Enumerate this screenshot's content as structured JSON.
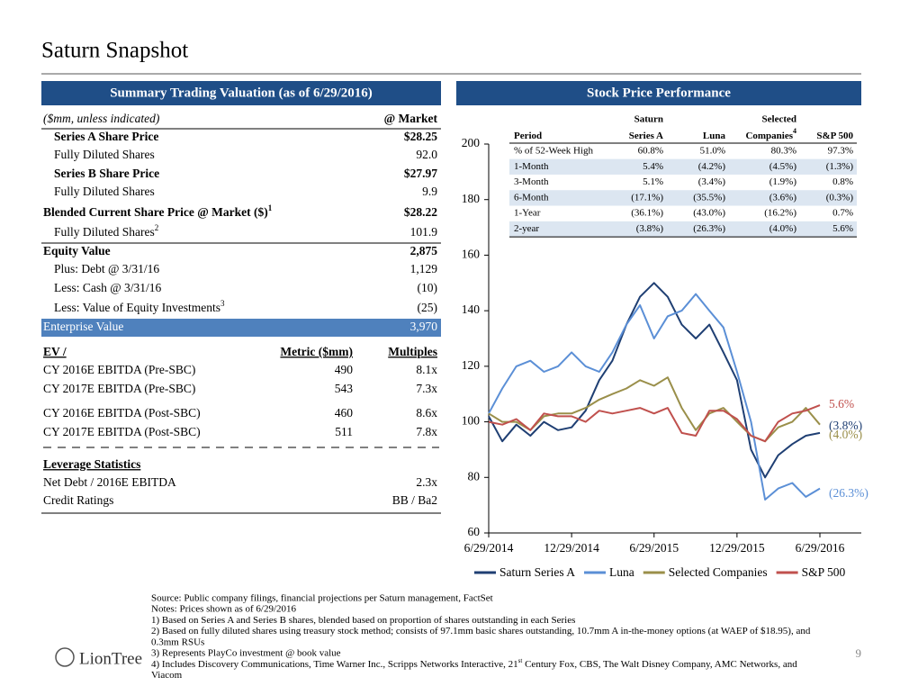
{
  "title": "Saturn Snapshot",
  "summary": {
    "heading": "Summary Trading Valuation (as of 6/29/2016)",
    "unit_note": "($mm, unless indicated)",
    "column": "@ Market",
    "rows": [
      {
        "label": "Series A Share Price",
        "value": "$28.25"
      },
      {
        "label": "Fully Diluted Shares",
        "value": "92.0"
      },
      {
        "label": "Series B Share Price",
        "value": "$27.97"
      },
      {
        "label": "Fully Diluted Shares",
        "value": "9.9"
      },
      {
        "label": "Blended Current Share Price @ Market ($)",
        "sup": "1",
        "value": "$28.22"
      },
      {
        "label": "Fully Diluted Shares",
        "sup": "2",
        "value": "101.9"
      },
      {
        "label": "Equity Value",
        "value": "2,875"
      },
      {
        "label": "Plus: Debt @ 3/31/16",
        "value": "1,129"
      },
      {
        "label": "Less: Cash @ 3/31/16",
        "value": "(10)"
      },
      {
        "label": "Less: Value of Equity Investments",
        "sup": "3",
        "value": "(25)"
      },
      {
        "label": "Enterprise Value",
        "value": "3,970"
      }
    ],
    "ev_columns": [
      "EV /",
      "Metric ($mm)",
      "Multiples"
    ],
    "ev_rows": [
      [
        "CY 2016E EBITDA (Pre-SBC)",
        "490",
        "8.1x"
      ],
      [
        "CY 2017E EBITDA (Pre-SBC)",
        "543",
        "7.3x"
      ],
      [
        "CY 2016E EBITDA (Post-SBC)",
        "460",
        "8.6x"
      ],
      [
        "CY 2017E EBITDA (Post-SBC)",
        "511",
        "7.8x"
      ]
    ],
    "leverage_title": "Leverage Statistics",
    "leverage_rows": [
      [
        "Net Debt / 2016E EBITDA",
        "2.3x"
      ],
      [
        "Credit Ratings",
        "BB / Ba2"
      ]
    ]
  },
  "chart_data": {
    "type": "line",
    "title": "Stock Price Performance",
    "x": [
      "2014-06-29",
      "2014-07-29",
      "2014-08-29",
      "2014-09-29",
      "2014-10-29",
      "2014-11-29",
      "2014-12-29",
      "2015-01-29",
      "2015-02-28",
      "2015-03-29",
      "2015-04-29",
      "2015-05-29",
      "2015-06-29",
      "2015-07-29",
      "2015-08-29",
      "2015-09-29",
      "2015-10-29",
      "2015-11-29",
      "2015-12-29",
      "2016-01-29",
      "2016-02-29",
      "2016-03-29",
      "2016-04-29",
      "2016-05-29",
      "2016-06-29"
    ],
    "series": [
      {
        "name": "Saturn Series A",
        "color": "#1f3f73",
        "values": [
          102,
          93,
          99,
          95,
          100,
          97,
          98,
          104,
          115,
          122,
          135,
          145,
          150,
          145,
          135,
          130,
          135,
          125,
          115,
          90,
          80,
          88,
          92,
          95,
          96
        ]
      },
      {
        "name": "Luna",
        "color": "#5b8fd6",
        "values": [
          103,
          112,
          120,
          122,
          118,
          120,
          125,
          120,
          118,
          125,
          135,
          142,
          130,
          138,
          140,
          146,
          140,
          134,
          118,
          100,
          72,
          76,
          78,
          73,
          76
        ]
      },
      {
        "name": "Selected Companies",
        "color": "#9a8f4a",
        "values": [
          103,
          100,
          100,
          97,
          102,
          103,
          103,
          105,
          108,
          110,
          112,
          115,
          113,
          116,
          105,
          97,
          103,
          105,
          100,
          95,
          93,
          98,
          100,
          105,
          99
        ]
      },
      {
        "name": "S&P 500",
        "color": "#c0504d",
        "values": [
          100,
          99,
          101,
          97,
          103,
          102,
          102,
          100,
          104,
          103,
          104,
          105,
          103,
          105,
          96,
          95,
          104,
          104,
          101,
          95,
          93,
          100,
          103,
          104,
          106
        ]
      }
    ],
    "xlim": [
      "2014-06-29",
      "2016-06-29"
    ],
    "xticks": [
      {
        "value": "2014-06-29",
        "label": "6/29/2014"
      },
      {
        "value": "2014-12-29",
        "label": "12/29/2014"
      },
      {
        "value": "2015-06-29",
        "label": "6/29/2015"
      },
      {
        "value": "2015-12-29",
        "label": "12/29/2015"
      },
      {
        "value": "2016-06-29",
        "label": "6/29/2016"
      }
    ],
    "ylim": [
      60,
      200
    ],
    "yticks": [
      60,
      80,
      100,
      120,
      140,
      160,
      180,
      200
    ],
    "grid": false,
    "legend": "bottom",
    "table": {
      "top": [
        "Saturn",
        "Selected"
      ],
      "columns": [
        "Period",
        "Series A",
        "Luna",
        "Companies",
        "S&P 500"
      ],
      "companies_sup": "4",
      "rows": [
        [
          "% of 52-Week High",
          "60.8%",
          "51.0%",
          "80.3%",
          "97.3%"
        ],
        [
          "1-Month",
          "5.4%",
          "(4.2%)",
          "(4.5%)",
          "(1.3%)"
        ],
        [
          "3-Month",
          "5.1%",
          "(3.4%)",
          "(1.9%)",
          "0.8%"
        ],
        [
          "6-Month",
          "(17.1%)",
          "(35.5%)",
          "(3.6%)",
          "(0.3%)"
        ],
        [
          "1-Year",
          "(36.1%)",
          "(43.0%)",
          "(16.2%)",
          "0.7%"
        ],
        [
          "2-year",
          "(3.8%)",
          "(26.3%)",
          "(4.0%)",
          "5.6%"
        ]
      ]
    }
  },
  "notes": [
    "Source: Public company filings, financial projections per Saturn management, FactSet",
    "Notes: Prices shown as of 6/29/2016",
    "1) Based on Series A and Series B shares, blended based on proportion of shares outstanding in each Series",
    "2) Based on fully diluted shares using treasury stock method; consists of 97.1mm basic shares outstanding, 10.7mm A in-the-money options (at WAEP of $18.95), and",
    "0.3mm RSUs",
    "3) Represents PlayCo investment @ book value"
  ],
  "note4": {
    "before": "4) Includes Discovery Communications, Time Warner Inc., Scripps Networks Interactive, 21",
    "sup": "st",
    "after": " Century Fox, CBS, The Walt Disney Company, AMC Networks, and",
    "last": "Viacom"
  },
  "logo": "LionTree",
  "page_number": "9"
}
